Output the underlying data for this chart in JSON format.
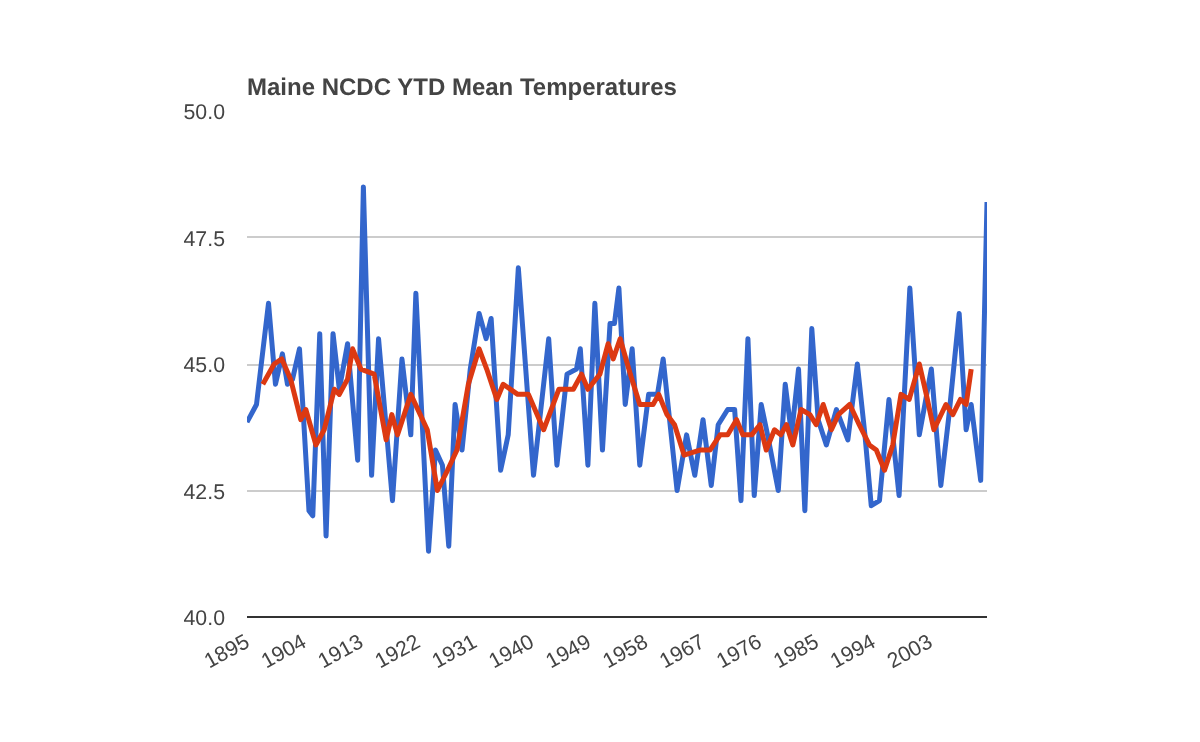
{
  "chart_data": {
    "type": "line",
    "title": "Maine NCDC YTD Mean Temperatures",
    "xlim": [
      1895,
      2012
    ],
    "xticks": [
      1895,
      1904,
      1913,
      1922,
      1931,
      1940,
      1949,
      1958,
      1967,
      1976,
      1985,
      1994,
      2003
    ],
    "ylim": [
      40,
      50
    ],
    "yticks": [
      {
        "value": 40,
        "label": "40.0"
      },
      {
        "value": 42.5,
        "label": "42.5"
      },
      {
        "value": 45,
        "label": "45.0"
      },
      {
        "value": 47.5,
        "label": "47.5"
      },
      {
        "value": 50,
        "label": "50.0"
      }
    ],
    "grid": "y",
    "marker": "none",
    "line_style": "solid",
    "series": [
      {
        "color": "#3366cc",
        "x": [
          1895,
          1896.5,
          1898.4,
          1899.5,
          1900.6,
          1901.4,
          1902.2,
          1903.3,
          1904.8,
          1905.4,
          1906.5,
          1907.5,
          1908.6,
          1909.6,
          1910.9,
          1912.5,
          1913.4,
          1914.7,
          1915.8,
          1918,
          1919.5,
          1920.9,
          1921.7,
          1923.7,
          1924.8,
          1925.9,
          1926.9,
          1927.9,
          1929,
          1930.3,
          1931.7,
          1932.8,
          1933.6,
          1935.1,
          1936.3,
          1937.9,
          1940.3,
          1942.7,
          1944,
          1945.6,
          1947.1,
          1947.7,
          1948.9,
          1950,
          1951.2,
          1952.4,
          1953.1,
          1953.8,
          1954.8,
          1955.9,
          1957.1,
          1958.5,
          1959.9,
          1960.8,
          1963,
          1964.5,
          1965.8,
          1967.1,
          1968.4,
          1969.5,
          1971,
          1972.1,
          1973.1,
          1974.2,
          1975.2,
          1976.3,
          1977.3,
          1979,
          1980.1,
          1981.1,
          1982.2,
          1983.2,
          1984.3,
          1985.3,
          1986.6,
          1988.2,
          1990,
          1991.5,
          1992.7,
          1993.7,
          1995,
          1996.5,
          1998.1,
          1999.8,
          2001.3,
          2003.2,
          2004.7,
          2006,
          2007.6,
          2008.7,
          2009.5,
          2011,
          2012
        ],
        "values": [
          43.85,
          44.2,
          46.2,
          44.6,
          45.2,
          44.6,
          44.7,
          45.3,
          42.1,
          42.0,
          45.6,
          41.6,
          45.6,
          44.5,
          45.4,
          43.1,
          48.5,
          42.8,
          45.5,
          42.3,
          45.1,
          43.6,
          46.4,
          41.3,
          43.3,
          43.0,
          41.4,
          44.2,
          43.3,
          44.9,
          46.0,
          45.5,
          45.9,
          42.9,
          43.6,
          46.9,
          42.8,
          45.5,
          43.0,
          44.8,
          44.9,
          45.3,
          43.0,
          46.2,
          43.3,
          45.8,
          45.8,
          46.5,
          44.2,
          45.3,
          43.0,
          44.4,
          44.4,
          45.1,
          42.5,
          43.6,
          42.8,
          43.9,
          42.6,
          43.8,
          44.1,
          44.1,
          42.3,
          45.5,
          42.4,
          44.2,
          43.6,
          42.5,
          44.6,
          43.6,
          44.9,
          42.1,
          45.7,
          43.9,
          43.4,
          44.1,
          43.5,
          45.0,
          43.6,
          42.2,
          42.3,
          44.3,
          42.4,
          46.5,
          43.6,
          44.9,
          42.6,
          44.0,
          46.0,
          43.7,
          44.2,
          42.7,
          48.2
        ]
      },
      {
        "color": "#dc3912",
        "x": [
          1897.5,
          1899.3,
          1900.5,
          1901.9,
          1903.5,
          1904.3,
          1905.9,
          1907.2,
          1908.8,
          1909.6,
          1910.9,
          1911.7,
          1913,
          1915.1,
          1917,
          1917.9,
          1918.8,
          1920.9,
          1923.5,
          1925.1,
          1926.7,
          1928.2,
          1930,
          1931.7,
          1932.9,
          1934.5,
          1935.5,
          1937.8,
          1939.5,
          1941.9,
          1944.3,
          1946.6,
          1947.9,
          1948.9,
          1950.8,
          1952.1,
          1952.9,
          1954,
          1955.6,
          1957.1,
          1959.2,
          1960.1,
          1961.4,
          1962.6,
          1964.1,
          1966.6,
          1968.2,
          1969.8,
          1971,
          1972.4,
          1973.4,
          1974.8,
          1976.1,
          1977.1,
          1978.4,
          1979.4,
          1980.3,
          1981.3,
          1982.6,
          1984,
          1985,
          1986.1,
          1987.4,
          1988.5,
          1990.3,
          1991.8,
          1993.4,
          1994.5,
          1995.8,
          1997.1,
          1998.4,
          1999.7,
          2001.3,
          2002.4,
          2003.6,
          2005.5,
          2006.6,
          2007.8,
          2008.7,
          2009.5
        ],
        "values": [
          44.6,
          45.0,
          45.1,
          44.7,
          43.9,
          44.1,
          43.4,
          43.7,
          44.5,
          44.4,
          44.7,
          45.3,
          44.9,
          44.8,
          43.5,
          44.0,
          43.6,
          44.4,
          43.7,
          42.5,
          42.9,
          43.3,
          44.6,
          45.3,
          44.9,
          44.3,
          44.6,
          44.4,
          44.4,
          43.7,
          44.5,
          44.5,
          44.8,
          44.5,
          44.8,
          45.4,
          45.1,
          45.5,
          44.8,
          44.2,
          44.2,
          44.4,
          44.0,
          43.8,
          43.2,
          43.3,
          43.3,
          43.6,
          43.6,
          43.9,
          43.6,
          43.6,
          43.8,
          43.3,
          43.7,
          43.6,
          43.8,
          43.4,
          44.1,
          44.0,
          43.8,
          44.2,
          43.7,
          44.0,
          44.2,
          43.8,
          43.4,
          43.3,
          42.9,
          43.4,
          44.4,
          44.3,
          45.0,
          44.4,
          43.7,
          44.2,
          44.0,
          44.3,
          44.2,
          44.9
        ]
      }
    ]
  }
}
